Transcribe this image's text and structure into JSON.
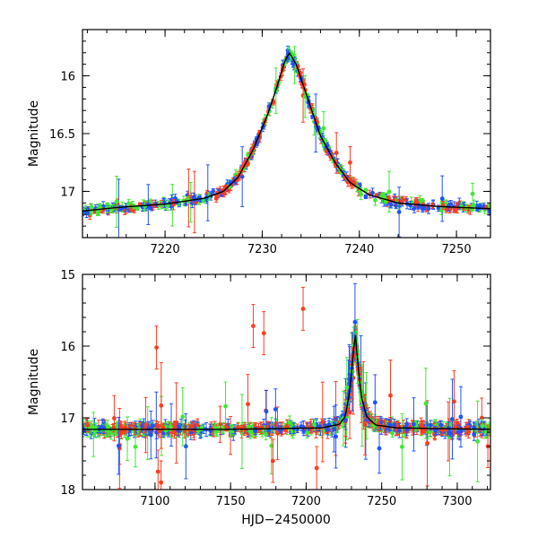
{
  "chart_data": [
    {
      "type": "scatter",
      "panel": "top",
      "title": "",
      "xlabel": "",
      "ylabel": "Magnitude",
      "xlim": [
        7211.5,
        7253.5
      ],
      "ylim": [
        17.4,
        15.6
      ],
      "x_inverted": false,
      "y_inverted": true,
      "x_ticks": [
        7220,
        7230,
        7240,
        7250
      ],
      "x_tick_labels": [
        "7220",
        "7230",
        "7240",
        "7250"
      ],
      "y_ticks": [
        16,
        16.5,
        17
      ],
      "y_tick_labels": [
        "16",
        "16.5",
        "17"
      ],
      "model_curve": {
        "x": [
          7211.5,
          7215,
          7220,
          7224,
          7226,
          7227.5,
          7229,
          7230.5,
          7231.5,
          7232.3,
          7232.8,
          7233.5,
          7234.5,
          7236,
          7237.5,
          7239,
          7241,
          7244,
          7248,
          7253.5
        ],
        "y": [
          17.17,
          17.14,
          17.11,
          17.06,
          17.0,
          16.88,
          16.65,
          16.35,
          16.1,
          15.88,
          15.8,
          15.9,
          16.15,
          16.52,
          16.75,
          16.92,
          17.03,
          17.1,
          17.13,
          17.15
        ]
      },
      "series": [
        {
          "name": "red",
          "color": "#ff3b1f"
        },
        {
          "name": "blue",
          "color": "#1f52ff"
        },
        {
          "name": "green",
          "color": "#3dea31"
        }
      ]
    },
    {
      "type": "scatter",
      "panel": "bottom",
      "title": "",
      "xlabel": "HJD−2450000",
      "ylabel": "Magnitude",
      "xlim": [
        7052,
        7322
      ],
      "ylim": [
        18,
        15
      ],
      "y_inverted": true,
      "x_ticks": [
        7100,
        7150,
        7200,
        7250,
        7300
      ],
      "x_tick_labels": [
        "7100",
        "7150",
        "7200",
        "7250",
        "7300"
      ],
      "y_ticks": [
        15,
        16,
        17,
        18
      ],
      "y_tick_labels": [
        "15",
        "16",
        "17",
        "18"
      ],
      "baseline_mag": 17.15,
      "model_curve": {
        "x": [
          7052,
          7150,
          7210,
          7222,
          7226,
          7229,
          7231,
          7232.5,
          7234,
          7236.5,
          7240,
          7246,
          7260,
          7322
        ],
        "y": [
          17.16,
          17.16,
          17.14,
          17.09,
          16.98,
          16.6,
          16.15,
          15.8,
          16.2,
          16.7,
          16.98,
          17.1,
          17.14,
          17.16
        ]
      },
      "outliers_red": [
        {
          "x": 7101,
          "y": 16.02
        },
        {
          "x": 7165,
          "y": 15.72
        },
        {
          "x": 7172,
          "y": 15.82
        },
        {
          "x": 7198,
          "y": 15.48
        },
        {
          "x": 7102,
          "y": 17.75
        },
        {
          "x": 7104,
          "y": 17.9
        },
        {
          "x": 7178,
          "y": 17.6
        },
        {
          "x": 7207,
          "y": 17.7
        }
      ],
      "series": [
        {
          "name": "red",
          "color": "#ff3b1f"
        },
        {
          "name": "blue",
          "color": "#1f52ff"
        },
        {
          "name": "green",
          "color": "#3dea31"
        }
      ]
    }
  ]
}
